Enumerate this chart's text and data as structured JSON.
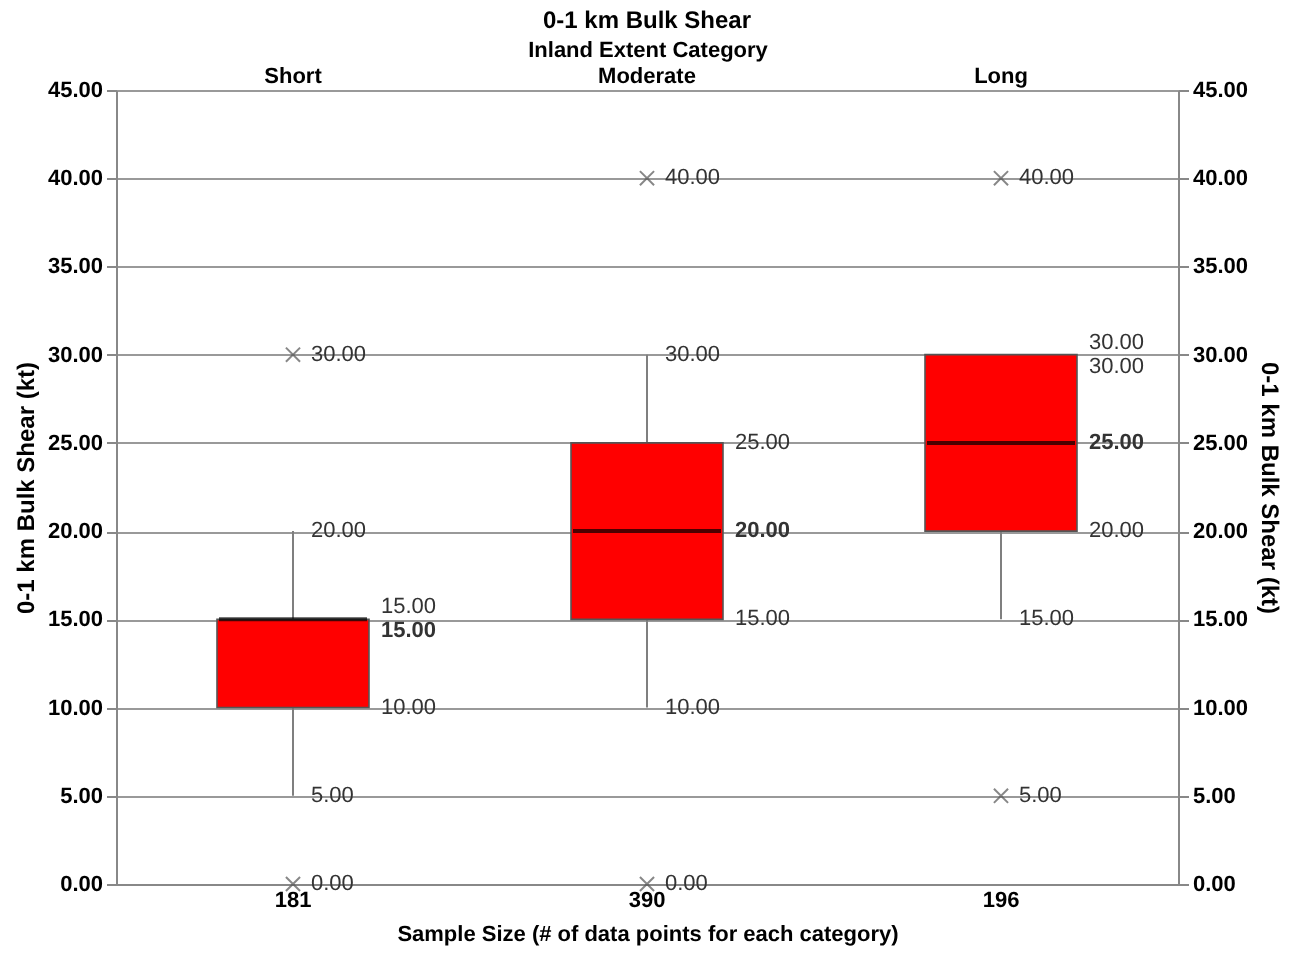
{
  "chart_data": {
    "type": "box",
    "title": "0-1 km Bulk Shear",
    "x2label": "Inland Extent Category",
    "xlabel": "Sample Size (# of data points for each category)",
    "ylabel": "0-1 km Bulk Shear (kt)",
    "y2label": "0-1 km Bulk Shear (kt)",
    "categories": [
      "Short",
      "Moderate",
      "Long"
    ],
    "boxes": [
      {
        "low": 5,
        "q1": 10,
        "median": 15,
        "q3": 15,
        "high": 20,
        "outliers": [
          0,
          30
        ]
      },
      {
        "low": 10,
        "q1": 15,
        "median": 20,
        "q3": 25,
        "high": 30,
        "outliers": [
          0,
          40
        ]
      },
      {
        "low": 15,
        "q1": 20,
        "median": 25,
        "q3": 30,
        "high": 30,
        "outliers": [
          5,
          40
        ]
      }
    ],
    "color": "#ff0000",
    "ylim": [
      0,
      45
    ],
    "yticks": [
      {
        "value": 0,
        "label": "0.00"
      },
      {
        "value": 5,
        "label": "5.00"
      },
      {
        "value": 10,
        "label": "10.00"
      },
      {
        "value": 15,
        "label": "15.00"
      },
      {
        "value": 20,
        "label": "20.00"
      },
      {
        "value": 25,
        "label": "25.00"
      },
      {
        "value": 30,
        "label": "30.00"
      },
      {
        "value": 35,
        "label": "35.00"
      },
      {
        "value": 40,
        "label": "40.00"
      },
      {
        "value": 45,
        "label": "45.00"
      }
    ],
    "y2lim": [
      0,
      45
    ],
    "y2ticks": [
      {
        "value": 0,
        "label": "0.00"
      },
      {
        "value": 5,
        "label": "5.00"
      },
      {
        "value": 10,
        "label": "10.00"
      },
      {
        "value": 15,
        "label": "15.00"
      },
      {
        "value": 20,
        "label": "20.00"
      },
      {
        "value": 25,
        "label": "25.00"
      },
      {
        "value": 30,
        "label": "30.00"
      },
      {
        "value": 35,
        "label": "35.00"
      },
      {
        "value": 40,
        "label": "40.00"
      },
      {
        "value": 45,
        "label": "45.00"
      }
    ],
    "annotations": [
      "181",
      "390",
      "196",
      "30.00",
      "20.00",
      "15.00",
      "15.00",
      "10.00",
      "5.00",
      "0.00",
      "40.00",
      "30.00",
      "25.00",
      "20.00",
      "15.00",
      "10.00",
      "0.00",
      "40.00",
      "30.00",
      "30.00",
      "25.00",
      "20.00",
      "15.00",
      "5.00"
    ],
    "grid": "y",
    "marker": "cross"
  }
}
